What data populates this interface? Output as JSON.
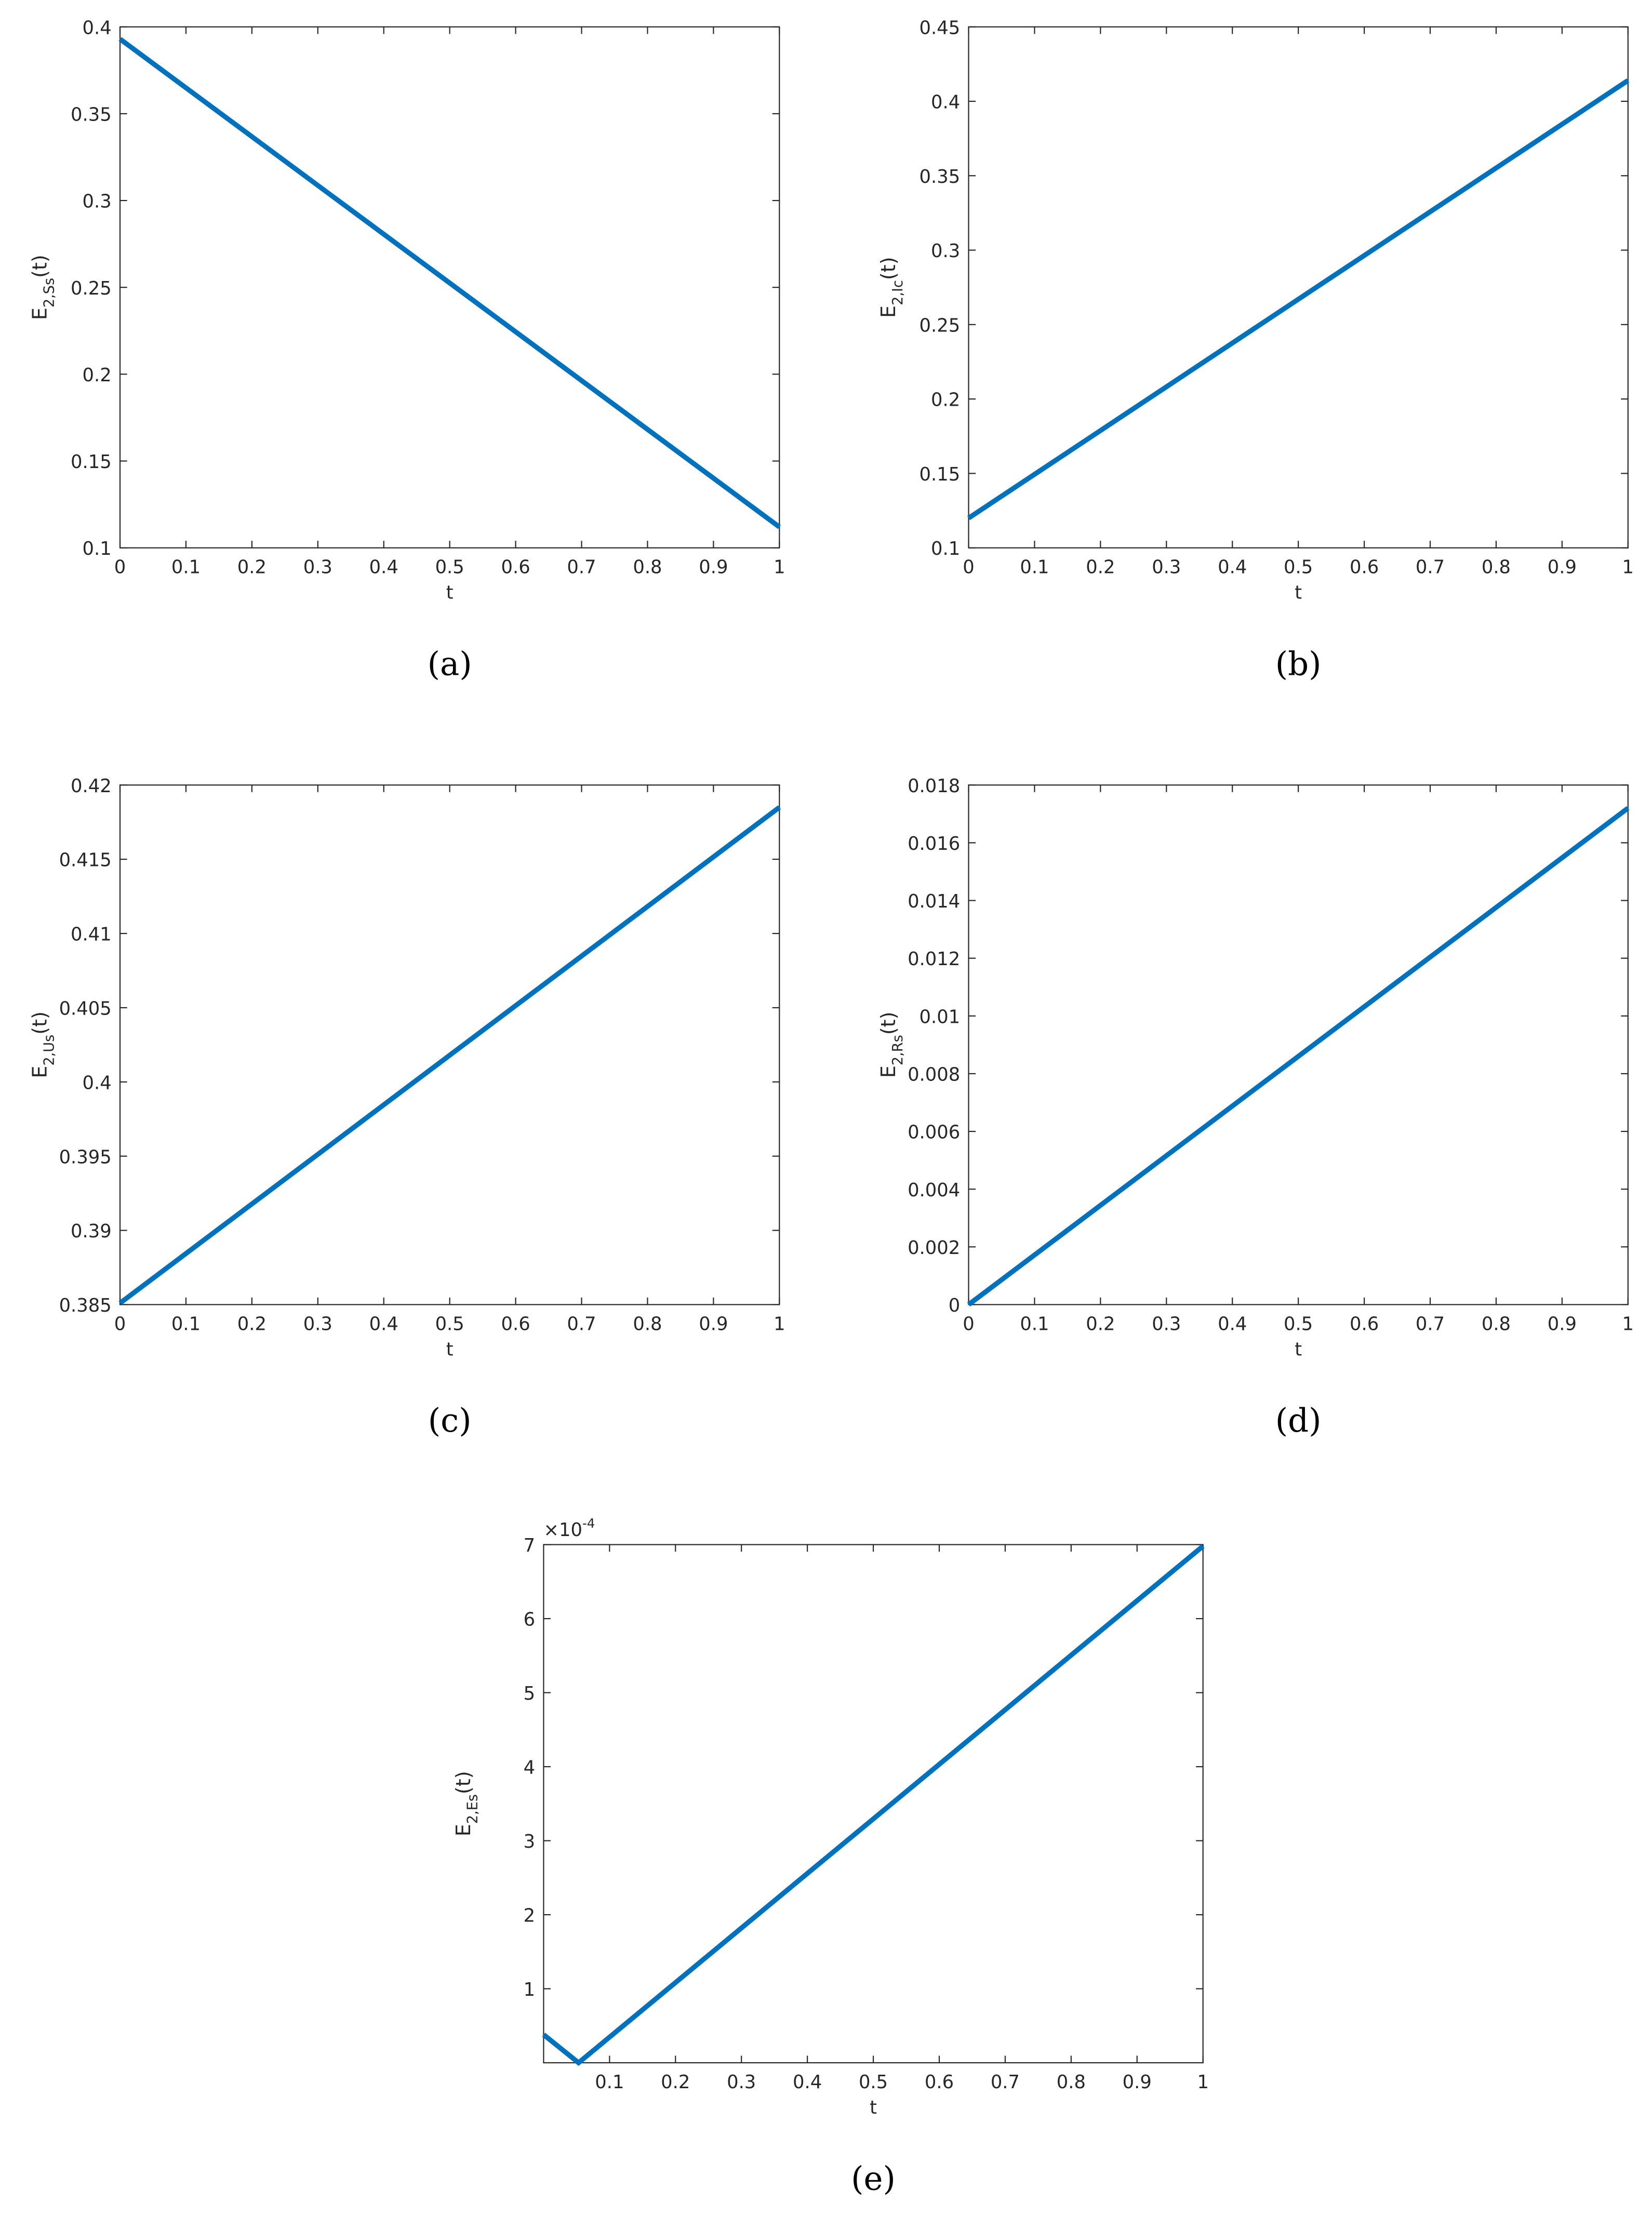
{
  "chart_data": [
    {
      "type": "line",
      "x": [
        0,
        1
      ],
      "values": [
        0.393,
        0.112
      ],
      "color": "#0072bd",
      "xlim": [
        0,
        1
      ],
      "ylim": [
        0.1,
        0.4
      ],
      "xticks": [
        0,
        0.1,
        0.2,
        0.3,
        0.4,
        0.5,
        0.6,
        0.7,
        0.8,
        0.9,
        1
      ],
      "yticks": [
        0.1,
        0.15,
        0.2,
        0.25,
        0.3,
        0.35,
        0.4
      ],
      "xlabel": "t",
      "ylabel": [
        "E",
        "2,Ss",
        "(t)"
      ],
      "panel_label": "(a)"
    },
    {
      "type": "line",
      "x": [
        0,
        1
      ],
      "values": [
        0.12,
        0.414
      ],
      "color": "#0072bd",
      "xlim": [
        0,
        1
      ],
      "ylim": [
        0.1,
        0.45
      ],
      "xticks": [
        0,
        0.1,
        0.2,
        0.3,
        0.4,
        0.5,
        0.6,
        0.7,
        0.8,
        0.9,
        1
      ],
      "yticks": [
        0.1,
        0.15,
        0.2,
        0.25,
        0.3,
        0.35,
        0.4,
        0.45
      ],
      "xlabel": "t",
      "ylabel": [
        "E",
        "2,Ic",
        "(t)"
      ],
      "panel_label": "(b)"
    },
    {
      "type": "line",
      "x": [
        0,
        1
      ],
      "values": [
        0.3851,
        0.4185
      ],
      "color": "#0072bd",
      "xlim": [
        0,
        1
      ],
      "ylim": [
        0.385,
        0.42
      ],
      "xticks": [
        0,
        0.1,
        0.2,
        0.3,
        0.4,
        0.5,
        0.6,
        0.7,
        0.8,
        0.9,
        1
      ],
      "yticks": [
        0.385,
        0.39,
        0.395,
        0.4,
        0.405,
        0.41,
        0.415,
        0.42
      ],
      "xlabel": "t",
      "ylabel": [
        "E",
        "2,Us",
        "(t)"
      ],
      "panel_label": "(c)"
    },
    {
      "type": "line",
      "x": [
        0,
        1
      ],
      "values": [
        0,
        0.0172
      ],
      "color": "#0072bd",
      "xlim": [
        0,
        1
      ],
      "ylim": [
        0,
        0.018
      ],
      "xticks": [
        0,
        0.1,
        0.2,
        0.3,
        0.4,
        0.5,
        0.6,
        0.7,
        0.8,
        0.9,
        1
      ],
      "yticks": [
        0,
        0.002,
        0.004,
        0.006,
        0.008,
        0.01,
        0.012,
        0.014,
        0.016,
        0.018
      ],
      "xlabel": "t",
      "ylabel": [
        "E",
        "2,Rs",
        "(t)"
      ],
      "panel_label": "(d)"
    },
    {
      "type": "line",
      "x": [
        0,
        0.053,
        1
      ],
      "values": [
        0.38,
        0,
        6.98
      ],
      "color": "#0072bd",
      "xlim": [
        0,
        1
      ],
      "ylim": [
        0,
        7
      ],
      "xticks": [
        0.1,
        0.2,
        0.3,
        0.4,
        0.5,
        0.6,
        0.7,
        0.8,
        0.9,
        1
      ],
      "yticks": [
        1,
        2,
        3,
        4,
        5,
        6,
        7
      ],
      "y_multiplier": [
        "×10",
        "-4"
      ],
      "xlabel": "t",
      "ylabel": [
        "E",
        "2,Es",
        "(t)"
      ],
      "panel_label": "(e)"
    }
  ]
}
